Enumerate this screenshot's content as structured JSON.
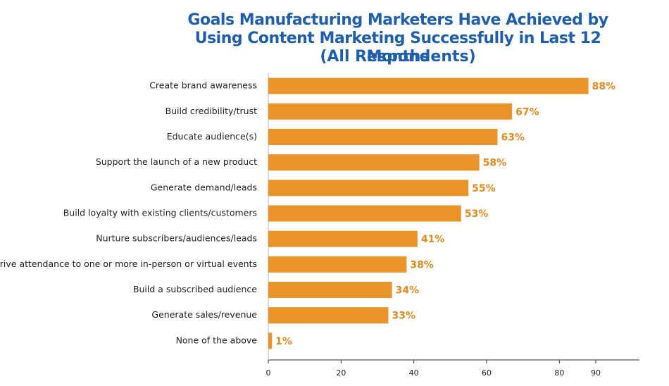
{
  "chart_data": {
    "type": "bar",
    "orientation": "horizontal",
    "title": "Goals Manufacturing Marketers Have Achieved by Using Content Marketing Successfully in Last 12 Months",
    "subtitle": "(All Respondents)",
    "categories": [
      "Create brand awareness",
      "Build credibility/trust",
      "Educate audience(s)",
      "Support the launch of a new product",
      "Generate demand/leads",
      "Build loyalty with existing clients/customers",
      "Nurture subscribers/audiences/leads",
      "Drive attendance to one or more in-person or virtual events",
      "Build a subscribed audience",
      "Generate sales/revenue",
      "None of the above"
    ],
    "values": [
      88,
      67,
      63,
      58,
      55,
      53,
      41,
      38,
      34,
      33,
      1
    ],
    "value_labels": [
      "88%",
      "67%",
      "63%",
      "58%",
      "55%",
      "53%",
      "41%",
      "38%",
      "34%",
      "33%",
      "1%"
    ],
    "color": "#e8942a",
    "label_color": "#e08a22",
    "xlim": [
      0,
      102
    ],
    "xticks": [
      0,
      20,
      40,
      60,
      80,
      90
    ]
  }
}
